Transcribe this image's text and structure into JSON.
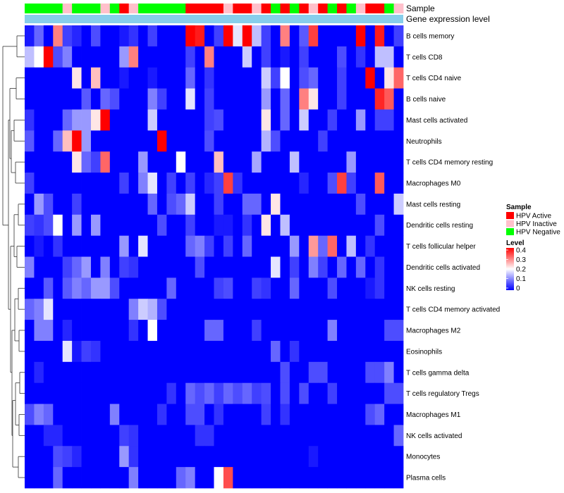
{
  "chart_data": {
    "type": "heatmap",
    "title": "",
    "annotation_rows": [
      "Sample",
      "Gene expression level"
    ],
    "sample_legend": {
      "title": "Sample",
      "items": [
        {
          "label": "HPV Active",
          "color": "#ff0000"
        },
        {
          "label": "HPV Inactive",
          "color": "#ffc0cb"
        },
        {
          "label": "HPV Negative",
          "color": "#00ff00"
        }
      ]
    },
    "level_legend": {
      "title": "Level",
      "ticks": [
        "0.4",
        "0.3",
        "0.2",
        "0.1",
        "0"
      ],
      "tick_values": [
        0.4,
        0.3,
        0.2,
        0.1,
        0
      ],
      "range": [
        0,
        0.4
      ],
      "colors": [
        "#0000ff",
        "#ffffff",
        "#ff0000"
      ]
    },
    "gene_expression_color": "#87ceeb",
    "sample_groups": [
      "N",
      "N",
      "N",
      "N",
      "I",
      "N",
      "N",
      "N",
      "I",
      "N",
      "A",
      "I",
      "N",
      "N",
      "N",
      "N",
      "N",
      "A",
      "A",
      "A",
      "A",
      "I",
      "A",
      "A",
      "I",
      "A",
      "N",
      "A",
      "N",
      "A",
      "I",
      "A",
      "N",
      "A",
      "N",
      "I",
      "A",
      "A",
      "N",
      "I"
    ],
    "rows": [
      "B cells memory",
      "T cells CD8",
      "T cells CD4 naive",
      "B cells naive",
      "Mast cells activated",
      "Neutrophils",
      "T cells CD4 memory resting",
      "Macrophages M0",
      "Mast cells resting",
      "Dendritic cells resting",
      "T cells follicular helper",
      "Dendritic cells activated",
      "NK cells resting",
      "T cells CD4 memory activated",
      "Macrophages M2",
      "Eosinophils",
      "T cells gamma delta",
      "T cells regulatory  Tregs",
      "Macrophages M1",
      "NK cells activated",
      "Monocytes",
      "Plasma cells"
    ],
    "values": [
      [
        0.02,
        0.08,
        0.0,
        0.3,
        0.05,
        0.03,
        0.0,
        0.06,
        0.0,
        0.0,
        0.02,
        0.04,
        0.0,
        0.05,
        0.0,
        0.0,
        0.0,
        0.4,
        0.38,
        0.0,
        0.05,
        0.4,
        0.18,
        0.4,
        0.15,
        0.05,
        0.0,
        0.3,
        0.0,
        0.07,
        0.35,
        0.0,
        0.0,
        0.0,
        0.0,
        0.4,
        0.0,
        0.38,
        0.0,
        0.05
      ],
      [
        0.15,
        0.2,
        0.4,
        0.06,
        0.1,
        0.0,
        0.0,
        0.0,
        0.0,
        0.0,
        0.12,
        0.3,
        0.0,
        0.0,
        0.0,
        0.0,
        0.0,
        0.05,
        0.0,
        0.3,
        0.0,
        0.0,
        0.0,
        0.16,
        0.0,
        0.05,
        0.0,
        0.02,
        0.0,
        0.05,
        0.0,
        0.0,
        0.0,
        0.06,
        0.0,
        0.04,
        0.0,
        0.15,
        0.15,
        0.0
      ],
      [
        0.0,
        0.0,
        0.0,
        0.0,
        0.0,
        0.22,
        0.0,
        0.25,
        0.0,
        0.0,
        0.02,
        0.0,
        0.0,
        0.02,
        0.0,
        0.0,
        0.0,
        0.08,
        0.0,
        0.04,
        0.0,
        0.0,
        0.0,
        0.0,
        0.0,
        0.16,
        0.05,
        0.2,
        0.0,
        0.06,
        0.08,
        0.0,
        0.0,
        0.05,
        0.0,
        0.0,
        0.4,
        0.0,
        0.22,
        0.32
      ],
      [
        0.0,
        0.0,
        0.0,
        0.0,
        0.0,
        0.0,
        0.07,
        0.0,
        0.08,
        0.06,
        0.0,
        0.0,
        0.0,
        0.1,
        0.05,
        0.0,
        0.0,
        0.18,
        0.0,
        0.05,
        0.0,
        0.0,
        0.0,
        0.0,
        0.0,
        0.12,
        0.0,
        0.08,
        0.0,
        0.3,
        0.22,
        0.0,
        0.0,
        0.05,
        0.0,
        0.0,
        0.0,
        0.37,
        0.33,
        0.0
      ],
      [
        0.04,
        0.0,
        0.0,
        0.0,
        0.08,
        0.12,
        0.12,
        0.22,
        0.4,
        0.0,
        0.0,
        0.0,
        0.0,
        0.16,
        0.0,
        0.0,
        0.0,
        0.0,
        0.0,
        0.05,
        0.06,
        0.0,
        0.0,
        0.0,
        0.0,
        0.22,
        0.0,
        0.08,
        0.0,
        0.16,
        0.0,
        0.0,
        0.05,
        0.0,
        0.0,
        0.12,
        0.0,
        0.05,
        0.05,
        0.0
      ],
      [
        0.07,
        0.0,
        0.0,
        0.08,
        0.25,
        0.4,
        0.12,
        0.0,
        0.0,
        0.0,
        0.0,
        0.0,
        0.0,
        0.0,
        0.4,
        0.0,
        0.0,
        0.0,
        0.0,
        0.06,
        0.0,
        0.0,
        0.0,
        0.0,
        0.0,
        0.14,
        0.06,
        0.0,
        0.0,
        0.0,
        0.0,
        0.05,
        0.0,
        0.0,
        0.0,
        0.0,
        0.0,
        0.0,
        0.0,
        0.0
      ],
      [
        0.0,
        0.0,
        0.0,
        0.0,
        0.0,
        0.22,
        0.08,
        0.05,
        0.32,
        0.0,
        0.0,
        0.0,
        0.12,
        0.0,
        0.0,
        0.0,
        0.2,
        0.0,
        0.0,
        0.0,
        0.25,
        0.0,
        0.0,
        0.0,
        0.13,
        0.0,
        0.0,
        0.0,
        0.15,
        0.0,
        0.0,
        0.0,
        0.0,
        0.0,
        0.12,
        0.0,
        0.0,
        0.0,
        0.0,
        0.0
      ],
      [
        0.05,
        0.0,
        0.0,
        0.0,
        0.0,
        0.0,
        0.0,
        0.0,
        0.0,
        0.0,
        0.05,
        0.0,
        0.1,
        0.18,
        0.0,
        0.05,
        0.0,
        0.05,
        0.0,
        0.03,
        0.05,
        0.35,
        0.04,
        0.0,
        0.0,
        0.0,
        0.0,
        0.0,
        0.0,
        0.03,
        0.0,
        0.0,
        0.06,
        0.35,
        0.05,
        0.0,
        0.0,
        0.33,
        0.0,
        0.0
      ],
      [
        0.0,
        0.12,
        0.06,
        0.0,
        0.0,
        0.05,
        0.0,
        0.0,
        0.0,
        0.0,
        0.0,
        0.0,
        0.0,
        0.08,
        0.0,
        0.06,
        0.08,
        0.16,
        0.0,
        0.0,
        0.05,
        0.0,
        0.0,
        0.08,
        0.08,
        0.0,
        0.22,
        0.0,
        0.0,
        0.0,
        0.0,
        0.0,
        0.0,
        0.0,
        0.0,
        0.06,
        0.0,
        0.0,
        0.0,
        0.16
      ],
      [
        0.05,
        0.04,
        0.06,
        0.2,
        0.0,
        0.12,
        0.0,
        0.12,
        0.0,
        0.0,
        0.0,
        0.0,
        0.0,
        0.0,
        0.06,
        0.0,
        0.0,
        0.05,
        0.0,
        0.0,
        0.02,
        0.02,
        0.0,
        0.04,
        0.0,
        0.22,
        0.0,
        0.15,
        0.0,
        0.0,
        0.0,
        0.0,
        0.0,
        0.0,
        0.0,
        0.0,
        0.0,
        0.06,
        0.0,
        0.0
      ],
      [
        0.0,
        0.02,
        0.0,
        0.04,
        0.0,
        0.0,
        0.0,
        0.0,
        0.0,
        0.0,
        0.12,
        0.0,
        0.18,
        0.0,
        0.0,
        0.0,
        0.0,
        0.08,
        0.1,
        0.05,
        0.0,
        0.05,
        0.0,
        0.08,
        0.0,
        0.0,
        0.0,
        0.0,
        0.12,
        0.0,
        0.28,
        0.08,
        0.32,
        0.0,
        0.15,
        0.0,
        0.04,
        0.0,
        0.0,
        0.0
      ],
      [
        0.1,
        0.0,
        0.0,
        0.0,
        0.05,
        0.08,
        0.12,
        0.0,
        0.1,
        0.0,
        0.05,
        0.04,
        0.0,
        0.0,
        0.0,
        0.0,
        0.0,
        0.0,
        0.06,
        0.0,
        0.0,
        0.0,
        0.0,
        0.0,
        0.0,
        0.0,
        0.18,
        0.0,
        0.05,
        0.0,
        0.1,
        0.05,
        0.0,
        0.08,
        0.0,
        0.08,
        0.0,
        0.04,
        0.0,
        0.0
      ],
      [
        0.0,
        0.0,
        0.07,
        0.0,
        0.07,
        0.1,
        0.08,
        0.12,
        0.12,
        0.06,
        0.0,
        0.0,
        0.0,
        0.0,
        0.0,
        0.08,
        0.0,
        0.0,
        0.0,
        0.0,
        0.05,
        0.06,
        0.0,
        0.0,
        0.05,
        0.04,
        0.0,
        0.0,
        0.08,
        0.0,
        0.0,
        0.0,
        0.06,
        0.0,
        0.0,
        0.0,
        0.02,
        0.04,
        0.0,
        0.0
      ],
      [
        0.08,
        0.1,
        0.18,
        0.0,
        0.0,
        0.0,
        0.0,
        0.0,
        0.0,
        0.0,
        0.0,
        0.1,
        0.16,
        0.14,
        0.06,
        0.0,
        0.0,
        0.0,
        0.0,
        0.0,
        0.0,
        0.0,
        0.0,
        0.0,
        0.0,
        0.0,
        0.0,
        0.0,
        0.0,
        0.0,
        0.0,
        0.0,
        0.0,
        0.0,
        0.0,
        0.0,
        0.0,
        0.0,
        0.0,
        0.0
      ],
      [
        0.0,
        0.1,
        0.1,
        0.0,
        0.03,
        0.0,
        0.0,
        0.0,
        0.0,
        0.0,
        0.0,
        0.04,
        0.0,
        0.2,
        0.0,
        0.0,
        0.0,
        0.0,
        0.0,
        0.08,
        0.08,
        0.0,
        0.0,
        0.0,
        0.05,
        0.0,
        0.0,
        0.0,
        0.0,
        0.0,
        0.0,
        0.0,
        0.1,
        0.0,
        0.0,
        0.0,
        0.0,
        0.0,
        0.06,
        0.06
      ],
      [
        0.0,
        0.0,
        0.0,
        0.0,
        0.18,
        0.02,
        0.05,
        0.04,
        0.0,
        0.0,
        0.0,
        0.0,
        0.0,
        0.0,
        0.0,
        0.0,
        0.0,
        0.0,
        0.0,
        0.0,
        0.0,
        0.0,
        0.0,
        0.0,
        0.0,
        0.0,
        0.08,
        0.0,
        0.04,
        0.0,
        0.0,
        0.0,
        0.0,
        0.0,
        0.0,
        0.0,
        0.0,
        0.0,
        0.0,
        0.0
      ],
      [
        0.0,
        0.03,
        0.0,
        0.0,
        0.0,
        0.0,
        0.0,
        0.0,
        0.0,
        0.0,
        0.0,
        0.0,
        0.0,
        0.0,
        0.0,
        0.0,
        0.0,
        0.0,
        0.0,
        0.0,
        0.0,
        0.0,
        0.0,
        0.0,
        0.0,
        0.0,
        0.0,
        0.06,
        0.0,
        0.0,
        0.06,
        0.06,
        0.0,
        0.0,
        0.0,
        0.0,
        0.06,
        0.06,
        0.1,
        0.0
      ],
      [
        0.0,
        0.0,
        0.0,
        0.0,
        0.0,
        0.0,
        0.0,
        0.0,
        0.0,
        0.0,
        0.0,
        0.0,
        0.0,
        0.0,
        0.0,
        0.04,
        0.0,
        0.08,
        0.06,
        0.08,
        0.05,
        0.08,
        0.06,
        0.08,
        0.05,
        0.06,
        0.0,
        0.06,
        0.0,
        0.06,
        0.0,
        0.0,
        0.05,
        0.0,
        0.0,
        0.0,
        0.0,
        0.0,
        0.06,
        0.06
      ],
      [
        0.06,
        0.1,
        0.08,
        0.0,
        0.0,
        0.0,
        0.0,
        0.0,
        0.0,
        0.1,
        0.0,
        0.0,
        0.0,
        0.0,
        0.04,
        0.0,
        0.0,
        0.06,
        0.06,
        0.0,
        0.04,
        0.0,
        0.0,
        0.0,
        0.0,
        0.05,
        0.0,
        0.04,
        0.0,
        0.0,
        0.0,
        0.0,
        0.0,
        0.0,
        0.0,
        0.0,
        0.06,
        0.08,
        0.0,
        0.0
      ],
      [
        0.0,
        0.0,
        0.03,
        0.03,
        0.0,
        0.0,
        0.0,
        0.0,
        0.0,
        0.0,
        0.05,
        0.04,
        0.0,
        0.0,
        0.0,
        0.0,
        0.0,
        0.0,
        0.04,
        0.04,
        0.0,
        0.0,
        0.0,
        0.0,
        0.0,
        0.0,
        0.0,
        0.0,
        0.0,
        0.0,
        0.0,
        0.0,
        0.0,
        0.0,
        0.0,
        0.0,
        0.0,
        0.0,
        0.0,
        0.08
      ],
      [
        0.0,
        0.0,
        0.0,
        0.06,
        0.05,
        0.03,
        0.0,
        0.0,
        0.0,
        0.0,
        0.12,
        0.04,
        0.0,
        0.0,
        0.0,
        0.0,
        0.0,
        0.0,
        0.0,
        0.0,
        0.0,
        0.0,
        0.0,
        0.0,
        0.0,
        0.0,
        0.0,
        0.0,
        0.0,
        0.0,
        0.02,
        0.0,
        0.0,
        0.0,
        0.0,
        0.0,
        0.0,
        0.0,
        0.0,
        0.0
      ],
      [
        0.0,
        0.0,
        0.0,
        0.08,
        0.0,
        0.0,
        0.0,
        0.0,
        0.0,
        0.0,
        0.0,
        0.1,
        0.0,
        0.0,
        0.0,
        0.0,
        0.08,
        0.1,
        0.0,
        0.0,
        0.2,
        0.34,
        0.0,
        0.0,
        0.0,
        0.0,
        0.0,
        0.0,
        0.0,
        0.0,
        0.0,
        0.0,
        0.0,
        0.0,
        0.0,
        0.0,
        0.0,
        0.0,
        0.0,
        0.0
      ]
    ]
  }
}
